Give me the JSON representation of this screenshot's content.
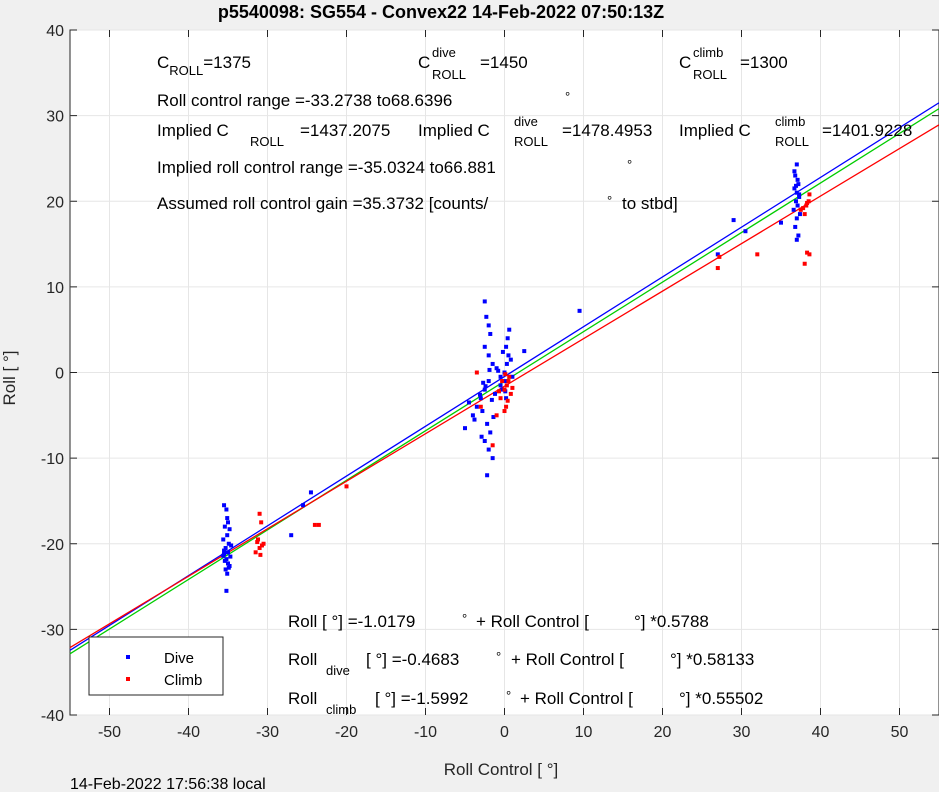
{
  "chart_data": {
    "type": "scatter",
    "title": "p5540098: SG554 - Convex22 14-Feb-2022 07:50:13Z",
    "xlabel": "Roll Control [   °]",
    "ylabel": "Roll [  °]",
    "xlim": [
      -55,
      55
    ],
    "ylim": [
      -40,
      40
    ],
    "xticks": [
      -50,
      -40,
      -30,
      -20,
      -10,
      0,
      10,
      20,
      30,
      40,
      50
    ],
    "yticks": [
      -40,
      -30,
      -20,
      -10,
      0,
      10,
      20,
      30,
      40
    ],
    "grid": true,
    "legend_position": "bottom-left",
    "footer": "14-Feb-2022 17:56:38 local",
    "annotations": {
      "c_roll": "C",
      "c_roll_sub": "ROLL",
      "c_roll_val": "=1375",
      "c_dive": "C",
      "c_dive_sup": "dive",
      "c_dive_sub": "ROLL",
      "c_dive_val": "=1450",
      "c_climb": "C",
      "c_climb_sup": "climb",
      "c_climb_sub": "ROLL",
      "c_climb_val": "=1300",
      "range": "Roll control range =-33.2738 to68.6396",
      "range_deg": "°",
      "implied_1": "Implied C",
      "implied_1_sub": "ROLL",
      "implied_1_val": "=1437.2075",
      "implied_2": "Implied C",
      "implied_2_sup": "dive",
      "implied_2_sub": "ROLL",
      "implied_2_val": "=1478.4953",
      "implied_3": "Implied C",
      "implied_3_sup": "climb",
      "implied_3_sub": "ROLL",
      "implied_3_val": "=1401.9228",
      "implied_range": "Implied roll control range =-35.0324 to66.881",
      "implied_range_deg": "°",
      "gain": "Assumed roll control gain =35.3732 [counts/",
      "gain_deg": "°",
      "gain_end": "to stbd]",
      "fit_all_a": "Roll [  °] =-1.0179",
      "fit_all_deg": "°",
      "fit_all_b": "+ Roll Control [",
      "fit_all_c": "°] *0.5788",
      "fit_dive_a": "Roll",
      "fit_dive_sub": "dive",
      "fit_dive_b": "[  °] =-0.4683",
      "fit_dive_deg": "°",
      "fit_dive_c": "+ Roll Control [",
      "fit_dive_d": "°] *0.58133",
      "fit_climb_a": "Roll",
      "fit_climb_sub": "climb",
      "fit_climb_b": "[  °] =-1.5992",
      "fit_climb_deg": "°",
      "fit_climb_c": "+ Roll Control [",
      "fit_climb_d": "°] *0.55502"
    },
    "fit_lines": [
      {
        "color": "#0000ff",
        "intercept": -0.4683,
        "slope": 0.58133
      },
      {
        "color": "#00cc00",
        "intercept": -1.0179,
        "slope": 0.5788
      },
      {
        "color": "#ff0000",
        "intercept": -1.5992,
        "slope": 0.55502
      }
    ],
    "series": [
      {
        "name": "Dive",
        "color": "#0000ff",
        "points": [
          [
            -35.5,
            -15.5
          ],
          [
            -35.2,
            -16
          ],
          [
            -35,
            -17.5
          ],
          [
            -35.4,
            -18
          ],
          [
            -34.8,
            -18.3
          ],
          [
            -35.1,
            -19
          ],
          [
            -35.6,
            -19.5
          ],
          [
            -34.9,
            -20
          ],
          [
            -35.3,
            -20.5
          ],
          [
            -35,
            -21
          ],
          [
            -35.5,
            -21.2
          ],
          [
            -34.7,
            -21.5
          ],
          [
            -35.2,
            -21.8
          ],
          [
            -35.4,
            -22
          ],
          [
            -35,
            -22.3
          ],
          [
            -34.8,
            -22.6
          ],
          [
            -35.3,
            -23
          ],
          [
            -35.1,
            -23.5
          ],
          [
            -35.5,
            -20.8
          ],
          [
            -34.9,
            -22.8
          ],
          [
            -35.2,
            -25.5
          ],
          [
            -35.6,
            -21.4
          ],
          [
            -34.6,
            -20.2
          ],
          [
            -35.1,
            -17
          ],
          [
            -27,
            -19
          ],
          [
            -25.5,
            -15.5
          ],
          [
            -24.5,
            -14
          ],
          [
            -5,
            -6.5
          ],
          [
            -4.5,
            -3.5
          ],
          [
            -4,
            -5
          ],
          [
            -3.5,
            -4
          ],
          [
            -3,
            -3
          ],
          [
            -2.5,
            -2
          ],
          [
            -2,
            -1
          ],
          [
            -2.8,
            -4.5
          ],
          [
            -2.2,
            -6
          ],
          [
            -1.8,
            -7
          ],
          [
            -2.5,
            -8
          ],
          [
            -2,
            -9
          ],
          [
            -1.5,
            -10
          ],
          [
            -2.2,
            -12
          ],
          [
            -2.5,
            8.3
          ],
          [
            -2.3,
            6.5
          ],
          [
            -2,
            5.5
          ],
          [
            -1.8,
            4.5
          ],
          [
            -2.5,
            3
          ],
          [
            -2,
            2
          ],
          [
            -1.5,
            1
          ],
          [
            -1,
            0.5
          ],
          [
            -0.5,
            -0.5
          ],
          [
            0,
            0
          ],
          [
            0.3,
            1
          ],
          [
            0.5,
            2
          ],
          [
            0.2,
            3
          ],
          [
            0.4,
            4
          ],
          [
            0.6,
            5
          ],
          [
            0,
            -1
          ],
          [
            -0.3,
            -2
          ],
          [
            0.2,
            -3
          ],
          [
            -0.5,
            -1.5
          ],
          [
            -1.2,
            -2.5
          ],
          [
            -1.6,
            -3.2
          ],
          [
            -2.7,
            -1.2
          ],
          [
            -3.1,
            -2.6
          ],
          [
            -1.4,
            -5.2
          ],
          [
            -2.9,
            -7.5
          ],
          [
            -0.8,
            0.2
          ],
          [
            0.8,
            1.5
          ],
          [
            1,
            -0.5
          ],
          [
            2.5,
            2.5
          ],
          [
            -3.8,
            -5.5
          ],
          [
            -2.4,
            -1.6
          ],
          [
            -1.9,
            0.3
          ],
          [
            -0.2,
            2.4
          ],
          [
            0.1,
            -2.2
          ],
          [
            9.5,
            7.2
          ],
          [
            27,
            13.8
          ],
          [
            29,
            17.8
          ],
          [
            30.5,
            16.5
          ],
          [
            35,
            17.5
          ],
          [
            37,
            24.3
          ],
          [
            36.8,
            23
          ],
          [
            37.2,
            22
          ],
          [
            36.7,
            21.5
          ],
          [
            37,
            21
          ],
          [
            37.3,
            20.5
          ],
          [
            36.9,
            20
          ],
          [
            37.1,
            19.5
          ],
          [
            36.6,
            19
          ],
          [
            37.4,
            18.5
          ],
          [
            37,
            18
          ],
          [
            36.8,
            17
          ],
          [
            37.2,
            16
          ],
          [
            37,
            15.5
          ],
          [
            36.7,
            23.5
          ],
          [
            37.1,
            22.5
          ],
          [
            36.9,
            21.8
          ],
          [
            37.3,
            20.8
          ]
        ]
      },
      {
        "name": "Climb",
        "color": "#ff0000",
        "points": [
          [
            -31,
            -16.5
          ],
          [
            -30.8,
            -17.5
          ],
          [
            -31.2,
            -19.5
          ],
          [
            -30.5,
            -20
          ],
          [
            -31,
            -20.5
          ],
          [
            -31.5,
            -21
          ],
          [
            -30.7,
            -20.2
          ],
          [
            -31.3,
            -19.8
          ],
          [
            -30.9,
            -21.3
          ],
          [
            -24,
            -17.8
          ],
          [
            -23.5,
            -17.8
          ],
          [
            -20,
            -13.3
          ],
          [
            -3.5,
            0
          ],
          [
            -3,
            -4
          ],
          [
            -1.5,
            -8.5
          ],
          [
            -1,
            -5
          ],
          [
            -0.5,
            -3
          ],
          [
            0,
            -2
          ],
          [
            0.3,
            -1.5
          ],
          [
            0.5,
            -1
          ],
          [
            0.8,
            -2.5
          ],
          [
            0.2,
            -4
          ],
          [
            0,
            -4.5
          ],
          [
            -0.3,
            -1
          ],
          [
            0.6,
            -0.5
          ],
          [
            1,
            -1.8
          ],
          [
            0.4,
            -3.3
          ],
          [
            -0.7,
            -2.2
          ],
          [
            0.1,
            -0.2
          ],
          [
            27,
            12.2
          ],
          [
            27.2,
            13.5
          ],
          [
            32,
            13.8
          ],
          [
            38,
            12.7
          ],
          [
            38.3,
            14
          ],
          [
            38.6,
            13.8
          ],
          [
            37.5,
            19
          ],
          [
            38,
            18.5
          ],
          [
            38.2,
            19.5
          ],
          [
            38.5,
            20
          ],
          [
            38.6,
            20.8
          ],
          [
            37.8,
            19.2
          ],
          [
            38.3,
            19.8
          ]
        ]
      }
    ]
  }
}
